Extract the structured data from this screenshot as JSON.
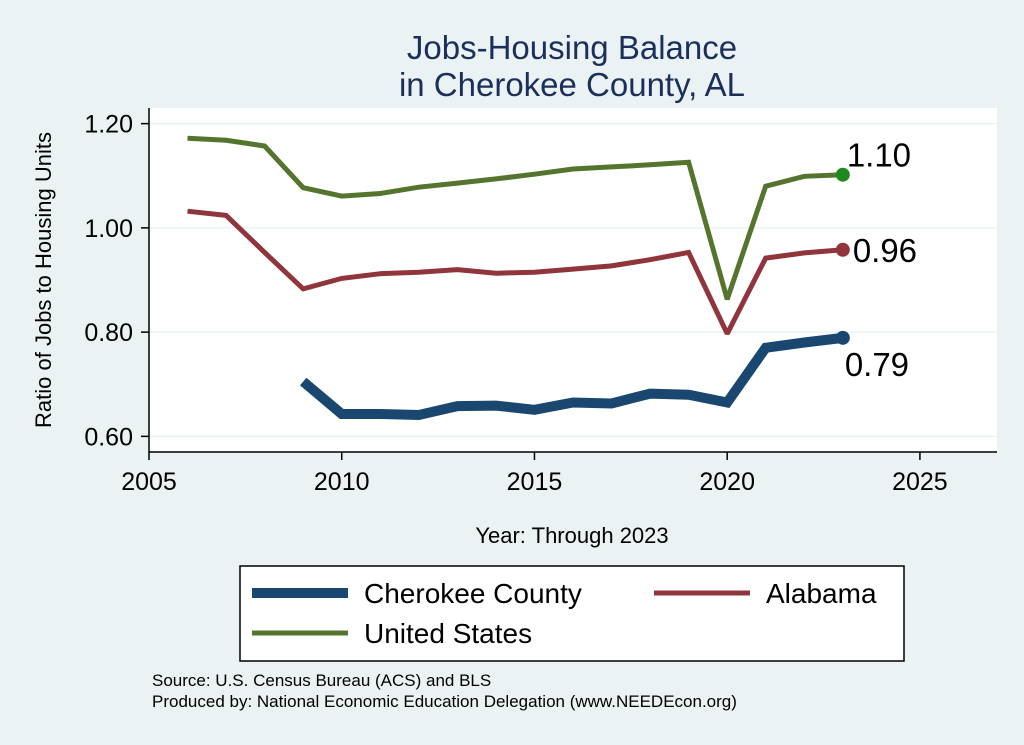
{
  "chart_data": {
    "type": "line",
    "title": [
      "Jobs-Housing Balance",
      "in Cherokee County, AL"
    ],
    "xlabel": "Year: Through 2023",
    "ylabel": "Ratio of Jobs to Housing Units",
    "xlim": [
      2005,
      2027
    ],
    "ylim": [
      0.57,
      1.23
    ],
    "xticks": [
      2005,
      2010,
      2015,
      2020,
      2025
    ],
    "yticks": [
      0.6,
      0.8,
      1.0,
      1.2
    ],
    "ytick_labels": [
      "0.60",
      "0.80",
      "1.00",
      "1.20"
    ],
    "grid": "horizontal",
    "legend_position": "bottom",
    "series": [
      {
        "name": "Cherokee County",
        "color": "#1a476f",
        "line_weight": "thick",
        "x": [
          2009,
          2010,
          2011,
          2012,
          2013,
          2014,
          2015,
          2016,
          2017,
          2018,
          2019,
          2020,
          2021,
          2022,
          2023
        ],
        "values": [
          0.705,
          0.643,
          0.643,
          0.641,
          0.658,
          0.659,
          0.651,
          0.665,
          0.663,
          0.682,
          0.68,
          0.665,
          0.77,
          0.78,
          0.789
        ],
        "end_label": "0.79"
      },
      {
        "name": "Alabama",
        "color": "#90353b",
        "line_weight": "medium",
        "x": [
          2006,
          2007,
          2008,
          2009,
          2010,
          2011,
          2012,
          2013,
          2014,
          2015,
          2016,
          2017,
          2018,
          2019,
          2020,
          2021,
          2022,
          2023
        ],
        "values": [
          1.032,
          1.024,
          0.953,
          0.883,
          0.903,
          0.912,
          0.915,
          0.92,
          0.913,
          0.915,
          0.921,
          0.927,
          0.939,
          0.953,
          0.797,
          0.942,
          0.952,
          0.958
        ],
        "end_label": "0.96"
      },
      {
        "name": "United States",
        "color": "#55752f",
        "line_weight": "medium",
        "x": [
          2006,
          2007,
          2008,
          2009,
          2010,
          2011,
          2012,
          2013,
          2014,
          2015,
          2016,
          2017,
          2018,
          2019,
          2020,
          2021,
          2022,
          2023
        ],
        "values": [
          1.172,
          1.168,
          1.157,
          1.077,
          1.061,
          1.066,
          1.078,
          1.086,
          1.094,
          1.103,
          1.113,
          1.117,
          1.121,
          1.126,
          0.863,
          1.08,
          1.099,
          1.102
        ],
        "end_label": "1.10",
        "marker_color": "#1e8a1e"
      }
    ],
    "notes": [
      "Source: U.S. Census Bureau (ACS) and BLS",
      "Produced by: National Economic Education Delegation (www.NEEDEcon.org)"
    ]
  }
}
